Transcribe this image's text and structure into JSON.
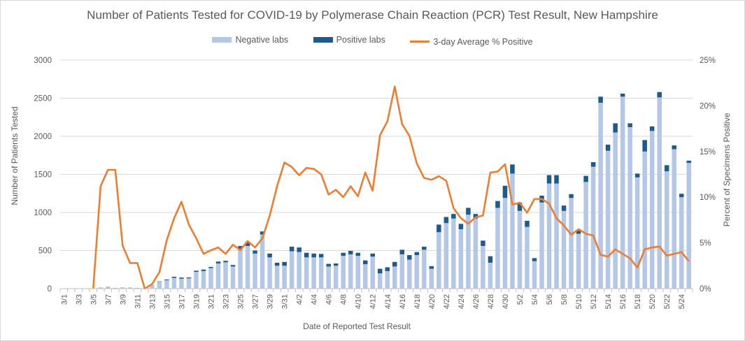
{
  "chart_data": {
    "type": "bar",
    "title": "Number of Patients Tested for COVID-19 by Polymerase Chain Reaction (PCR) Test Result, New Hampshire",
    "xlabel": "Date of Reported Test Result",
    "ylabel": "Number of Patients Tested",
    "y2label": "Percent of Specimens Positive",
    "ylim": [
      0,
      3000
    ],
    "y2lim": [
      0,
      0.25
    ],
    "yticks": [
      "0",
      "500",
      "1000",
      "1500",
      "2000",
      "2500",
      "3000"
    ],
    "y2ticks": [
      "0%",
      "5%",
      "10%",
      "15%",
      "20%",
      "25%"
    ],
    "legend_position": "top",
    "stacked": true,
    "colors": {
      "negative": "#b4c7e7",
      "positive": "#1f5a8c",
      "line": "#ed7d31"
    },
    "categories": [
      "3/1",
      "3/2",
      "3/3",
      "3/4",
      "3/5",
      "3/6",
      "3/7",
      "3/8",
      "3/9",
      "3/10",
      "3/11",
      "3/12",
      "3/13",
      "3/14",
      "3/15",
      "3/16",
      "3/17",
      "3/18",
      "3/19",
      "3/20",
      "3/21",
      "3/22",
      "3/23",
      "3/24",
      "3/25",
      "3/26",
      "3/27",
      "3/28",
      "3/29",
      "3/30",
      "3/31",
      "4/1",
      "4/2",
      "4/3",
      "4/4",
      "4/5",
      "4/6",
      "4/7",
      "4/8",
      "4/9",
      "4/10",
      "4/11",
      "4/12",
      "4/13",
      "4/14",
      "4/15",
      "4/16",
      "4/17",
      "4/18",
      "4/19",
      "4/20",
      "4/21",
      "4/22",
      "4/23",
      "4/24",
      "4/25",
      "4/26",
      "4/27",
      "4/28",
      "4/29",
      "4/30",
      "5/1",
      "5/2",
      "5/3",
      "5/4",
      "5/5",
      "5/6",
      "5/7",
      "5/8",
      "5/9",
      "5/10",
      "5/11",
      "5/12",
      "5/13",
      "5/14",
      "5/15",
      "5/16",
      "5/17",
      "5/18",
      "5/19",
      "5/20",
      "5/21",
      "5/22",
      "5/23",
      "5/24",
      "5/25"
    ],
    "series": [
      {
        "name": "Negative labs",
        "kind": "bar",
        "values": [
          0,
          0,
          0,
          0,
          2,
          10,
          18,
          5,
          12,
          10,
          8,
          5,
          45,
          90,
          110,
          140,
          130,
          135,
          220,
          230,
          270,
          330,
          345,
          290,
          520,
          560,
          460,
          710,
          410,
          300,
          300,
          490,
          480,
          410,
          410,
          410,
          290,
          300,
          430,
          450,
          430,
          320,
          420,
          200,
          230,
          290,
          450,
          380,
          440,
          510,
          260,
          740,
          860,
          920,
          780,
          970,
          920,
          560,
          340,
          1060,
          1190,
          1510,
          1020,
          810,
          360,
          1130,
          1380,
          1380,
          1020,
          1190,
          720,
          1400,
          1600,
          2440,
          1810,
          2050,
          2520,
          2120,
          1460,
          1800,
          2070,
          2510,
          1540,
          1830,
          1200,
          1650
        ]
      },
      {
        "name": "Positive labs",
        "kind": "bar",
        "values": [
          0,
          0,
          0,
          0,
          0,
          2,
          3,
          2,
          2,
          2,
          1,
          1,
          2,
          5,
          10,
          15,
          15,
          12,
          15,
          20,
          15,
          25,
          20,
          20,
          40,
          55,
          40,
          40,
          50,
          40,
          50,
          60,
          60,
          60,
          50,
          45,
          35,
          30,
          40,
          45,
          40,
          50,
          40,
          60,
          50,
          60,
          60,
          60,
          40,
          40,
          35,
          100,
          80,
          60,
          70,
          90,
          60,
          70,
          85,
          90,
          160,
          120,
          110,
          80,
          40,
          90,
          110,
          110,
          70,
          50,
          40,
          80,
          60,
          80,
          80,
          120,
          40,
          50,
          50,
          150,
          60,
          70,
          80,
          50,
          45,
          30
        ]
      },
      {
        "name": "3-day Average % Positive",
        "kind": "line",
        "axis": "y2",
        "values": [
          null,
          null,
          null,
          null,
          0,
          0.112,
          0.13,
          0.13,
          0.047,
          0.028,
          0.028,
          0,
          0.005,
          0.018,
          0.053,
          0.077,
          0.095,
          0.07,
          0.055,
          0.038,
          0.042,
          0.045,
          0.038,
          0.048,
          0.042,
          0.052,
          0.045,
          0.055,
          0.08,
          0.112,
          0.138,
          0.133,
          0.124,
          0.132,
          0.131,
          0.125,
          0.103,
          0.108,
          0.1,
          0.112,
          0.101,
          0.127,
          0.107,
          0.168,
          0.183,
          0.221,
          0.18,
          0.167,
          0.137,
          0.121,
          0.119,
          0.123,
          0.118,
          0.088,
          0.077,
          0.071,
          0.078,
          0.08,
          0.127,
          0.128,
          0.136,
          0.092,
          0.094,
          0.083,
          0.098,
          0.098,
          0.093,
          0.077,
          0.069,
          0.059,
          0.065,
          0.06,
          0.058,
          0.037,
          0.035,
          0.043,
          0.038,
          0.033,
          0.023,
          0.043,
          0.045,
          0.046,
          0.036,
          0.038,
          0.04,
          0.03
        ]
      }
    ]
  }
}
